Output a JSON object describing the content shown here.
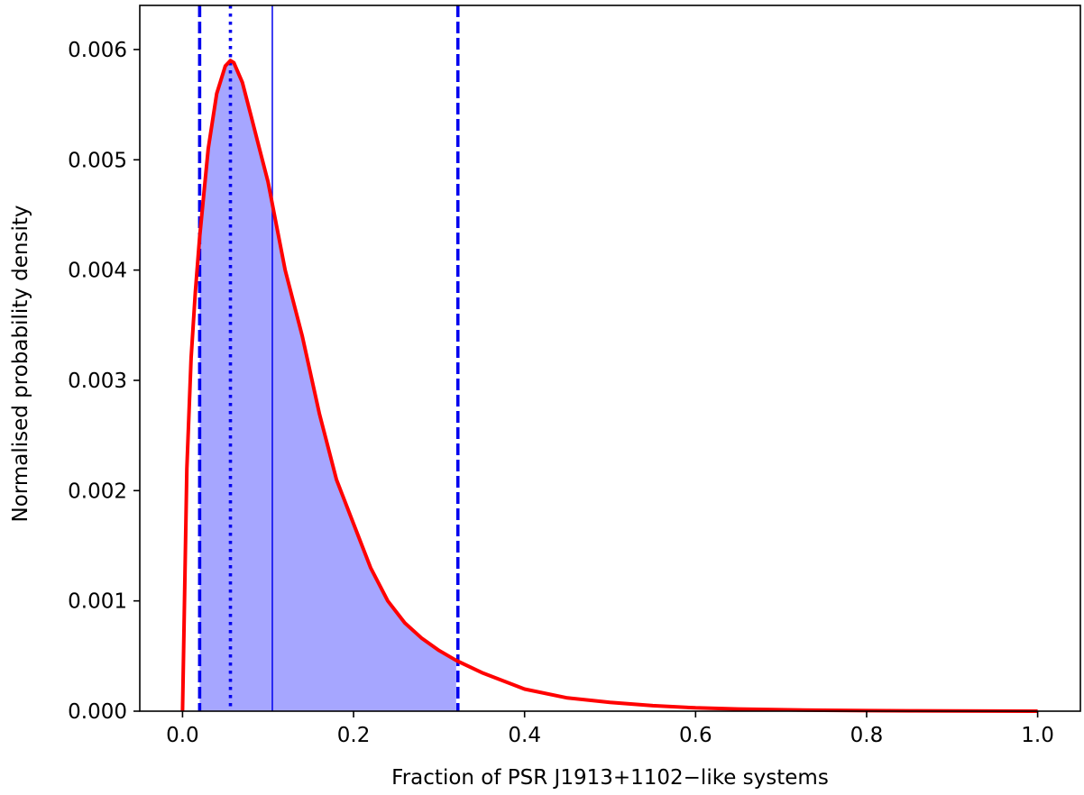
{
  "chart_data": {
    "type": "area",
    "title": "",
    "xlabel": "Fraction of PSR J1913+1102−like systems",
    "ylabel": "Normalised probability density",
    "xlim": [
      -0.05,
      1.05
    ],
    "ylim": [
      0,
      0.0064
    ],
    "x_ticks": [
      0.0,
      0.2,
      0.4,
      0.6,
      0.8,
      1.0
    ],
    "x_tick_labels": [
      "0.0",
      "0.2",
      "0.4",
      "0.6",
      "0.8",
      "1.0"
    ],
    "y_ticks": [
      0.0,
      0.001,
      0.002,
      0.003,
      0.004,
      0.005,
      0.006
    ],
    "y_tick_labels": [
      "0.000",
      "0.001",
      "0.002",
      "0.003",
      "0.004",
      "0.005",
      "0.006"
    ],
    "grid": false,
    "series": [
      {
        "style": "line",
        "color": "#ff0000",
        "x": [
          0.0,
          0.005,
          0.01,
          0.015,
          0.02,
          0.03,
          0.04,
          0.05,
          0.056,
          0.06,
          0.07,
          0.08,
          0.09,
          0.1,
          0.11,
          0.12,
          0.14,
          0.16,
          0.18,
          0.2,
          0.22,
          0.24,
          0.26,
          0.28,
          0.3,
          0.32,
          0.35,
          0.4,
          0.45,
          0.5,
          0.55,
          0.6,
          0.65,
          0.7,
          0.75,
          0.8,
          0.85,
          0.9,
          0.95,
          1.0
        ],
        "y": [
          0.0,
          0.0022,
          0.0032,
          0.0038,
          0.0043,
          0.0051,
          0.0056,
          0.00585,
          0.0059,
          0.00588,
          0.0057,
          0.0054,
          0.0051,
          0.0048,
          0.0044,
          0.004,
          0.0034,
          0.0027,
          0.0021,
          0.0017,
          0.0013,
          0.001,
          0.0008,
          0.00066,
          0.00055,
          0.00046,
          0.00035,
          0.0002,
          0.00012,
          8e-05,
          5e-05,
          3e-05,
          2e-05,
          1.3e-05,
          8e-06,
          5e-06,
          3e-06,
          2e-06,
          1e-06,
          0.0
        ]
      }
    ],
    "shaded_interval": {
      "from": 0.02,
      "to": 0.32,
      "color": "#a6a6ff"
    },
    "reference_lines": [
      {
        "x": 0.02,
        "style": "dashed",
        "color": "#0000ee"
      },
      {
        "x": 0.056,
        "style": "dotted",
        "color": "#0000ee"
      },
      {
        "x": 0.105,
        "style": "solid",
        "color": "#0000ee"
      },
      {
        "x": 0.322,
        "style": "dashed",
        "color": "#0000ee"
      }
    ]
  }
}
